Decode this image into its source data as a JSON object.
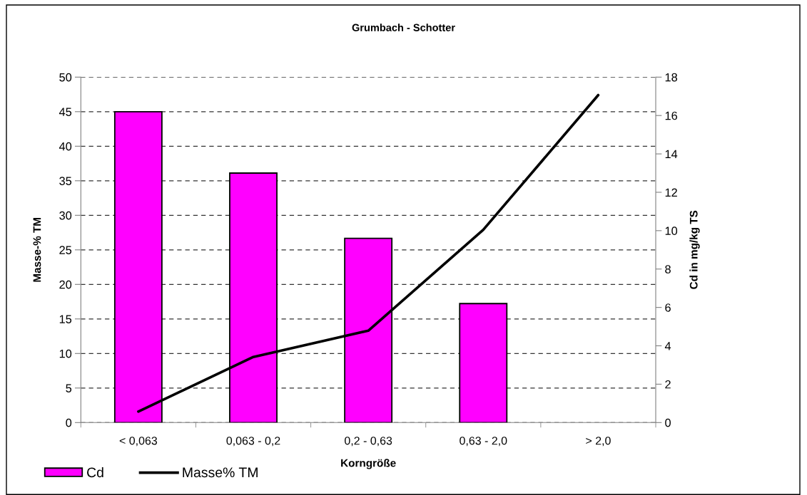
{
  "chart_data": {
    "type": "bar",
    "title": "Grumbach - Schotter",
    "xlabel": "Korngröße",
    "ylabel": "Masse-% TM",
    "y2label": "Cd in mg/kg TS",
    "categories": [
      "< 0,063",
      "0,063 - 0,2",
      "0,2 - 0,63",
      "0,63 - 2,0",
      "> 2,0"
    ],
    "series": [
      {
        "name": "Cd",
        "axis": "y2",
        "color": "#ff00ff",
        "values": [
          16.2,
          13.0,
          9.6,
          6.2,
          null
        ]
      },
      {
        "name": "Masse% TM",
        "type": "line",
        "axis": "y",
        "color": "#000000",
        "values": [
          1.6,
          9.5,
          13.3,
          27.9,
          47.4
        ]
      }
    ],
    "ylim": [
      0,
      50
    ],
    "yticks": [
      0,
      5,
      10,
      15,
      20,
      25,
      30,
      35,
      40,
      45,
      50
    ],
    "y2lim": [
      0,
      18
    ],
    "y2ticks": [
      0,
      2,
      4,
      6,
      8,
      10,
      12,
      14,
      16,
      18
    ],
    "grid": "y",
    "legend": "bottom left",
    "marker": "none",
    "line_style": "solid"
  }
}
